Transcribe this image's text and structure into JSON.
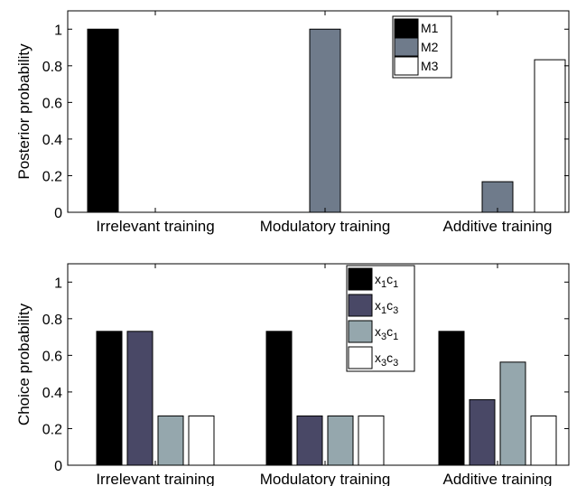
{
  "colors": {
    "m1": "#000000",
    "m2": "#6f7b8b",
    "m3": "#ffffff",
    "x1c1": "#000000",
    "x1c3": "#494866",
    "x3c1": "#95a7ad",
    "x3c3": "#ffffff"
  },
  "chart_data": [
    {
      "type": "bar",
      "ylabel": "Posterior probability",
      "categories": [
        "Irrelevant training",
        "Modulatory training",
        "Additive training"
      ],
      "ylim": [
        0,
        1.1
      ],
      "yticks": [
        "0",
        "0.2",
        "0.4",
        "0.6",
        "0.8",
        "1"
      ],
      "legend_position": "top-right",
      "series": [
        {
          "name": "M1",
          "values": [
            1.0,
            0.0,
            0.0
          ]
        },
        {
          "name": "M2",
          "values": [
            0.0,
            1.0,
            0.167
          ]
        },
        {
          "name": "M3",
          "values": [
            0.0,
            0.0,
            0.833
          ]
        }
      ]
    },
    {
      "type": "bar",
      "ylabel": "Choice probability",
      "categories": [
        "Irrelevant training",
        "Modulatory training",
        "Additive training"
      ],
      "ylim": [
        0,
        1.1
      ],
      "yticks": [
        "0",
        "0.2",
        "0.4",
        "0.6",
        "0.8",
        "1"
      ],
      "legend_position": "top-right",
      "series": [
        {
          "name": "x1c1",
          "sub": [
            "1",
            "1"
          ],
          "values": [
            0.731,
            0.731,
            0.731
          ]
        },
        {
          "name": "x1c3",
          "sub": [
            "1",
            "3"
          ],
          "values": [
            0.731,
            0.269,
            0.358
          ]
        },
        {
          "name": "x3c1",
          "sub": [
            "3",
            "1"
          ],
          "values": [
            0.269,
            0.269,
            0.563
          ]
        },
        {
          "name": "x3c3",
          "sub": [
            "3",
            "3"
          ],
          "values": [
            0.269,
            0.269,
            0.269
          ]
        }
      ]
    }
  ]
}
